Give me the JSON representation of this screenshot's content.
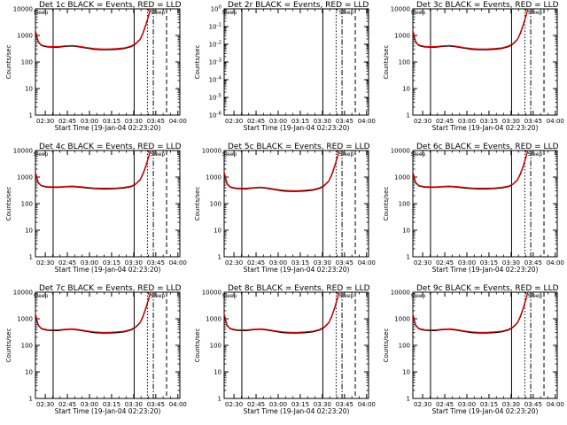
{
  "chart_data": [
    {
      "type": "line",
      "title": "Det 1c BLACK = Events, RED = LLD",
      "xlabel": "Start Time (19-Jan-04 02:23:20)",
      "ylabel": "Counts/sec",
      "x_ticks": [
        "02:30",
        "02:45",
        "03:00",
        "03:15",
        "03:30",
        "03:45",
        "04:00"
      ],
      "y_ticks": [
        "1",
        "10",
        "100",
        "1000",
        "10000"
      ],
      "y_scale": "log",
      "ylim": [
        1,
        10000
      ],
      "x_minutes": [
        0,
        2,
        4,
        6,
        8,
        10,
        15,
        20,
        25,
        30,
        35,
        40,
        45,
        50,
        55,
        60,
        65,
        68,
        71,
        73,
        75,
        77,
        78
      ],
      "series": [
        {
          "color": "#000000",
          "values": [
            1500,
            560,
            420,
            390,
            370,
            365,
            360,
            385,
            400,
            370,
            330,
            300,
            290,
            290,
            300,
            320,
            380,
            480,
            700,
            1200,
            2500,
            6000,
            10000
          ]
        },
        {
          "color": "#ff0000",
          "values": [
            1600,
            590,
            440,
            410,
            390,
            385,
            380,
            405,
            420,
            390,
            350,
            320,
            310,
            310,
            320,
            340,
            400,
            500,
            730,
            1300,
            2700,
            6500,
            11000
          ]
        }
      ],
      "vlines_minutes": [
        {
          "at": 12,
          "style": "solid"
        },
        {
          "at": 67,
          "style": "solid"
        },
        {
          "at": 76,
          "style": "dotted"
        },
        {
          "at": 80,
          "style": "dashdot"
        },
        {
          "at": 89,
          "style": "dashed"
        }
      ],
      "marker_text": "Sleep"
    },
    {
      "type": "line",
      "title": "Det 2r BLACK = Events, RED = LLD",
      "xlabel": "Start Time (19-Jan-04 02:23:20)",
      "ylabel": "Counts/sec",
      "x_ticks": [
        "02:30",
        "02:45",
        "03:00",
        "03:15",
        "03:30",
        "03:45",
        "04:00"
      ],
      "y_ticks": [
        "10^0",
        "10^-1",
        "10^-2",
        "10^-3",
        "10^-4",
        "10^-5",
        "10^-6"
      ],
      "y_scale": "log",
      "ylim": [
        1e-06,
        1
      ],
      "x_minutes": [],
      "series": [],
      "vlines_minutes": [
        {
          "at": 12,
          "style": "solid"
        },
        {
          "at": 67,
          "style": "solid"
        },
        {
          "at": 76,
          "style": "dotted"
        },
        {
          "at": 80,
          "style": "dashdot"
        },
        {
          "at": 89,
          "style": "dashed"
        }
      ],
      "marker_text": "Sleep"
    },
    {
      "type": "line",
      "title": "Det 3c BLACK = Events, RED = LLD",
      "xlabel": "Start Time (19-Jan-04 02:23:20)",
      "ylabel": "Counts/sec",
      "x_ticks": [
        "02:30",
        "02:45",
        "03:00",
        "03:15",
        "03:30",
        "03:45",
        "04:00"
      ],
      "y_ticks": [
        "1",
        "10",
        "100",
        "1000",
        "10000"
      ],
      "y_scale": "log",
      "ylim": [
        1,
        10000
      ],
      "x_minutes": [
        0,
        2,
        4,
        6,
        8,
        10,
        15,
        20,
        25,
        30,
        35,
        40,
        45,
        50,
        55,
        60,
        65,
        68,
        71,
        73,
        75,
        77,
        78
      ],
      "series": [
        {
          "color": "#000000",
          "values": [
            1500,
            560,
            420,
            390,
            370,
            365,
            360,
            385,
            400,
            370,
            330,
            300,
            290,
            290,
            300,
            320,
            380,
            480,
            700,
            1200,
            2500,
            6000,
            10000
          ]
        },
        {
          "color": "#ff0000",
          "values": [
            1600,
            590,
            440,
            410,
            390,
            385,
            380,
            405,
            420,
            390,
            350,
            320,
            310,
            310,
            320,
            340,
            400,
            500,
            730,
            1300,
            2700,
            6500,
            11000
          ]
        }
      ],
      "vlines_minutes": [
        {
          "at": 12,
          "style": "solid"
        },
        {
          "at": 67,
          "style": "solid"
        },
        {
          "at": 76,
          "style": "dotted"
        },
        {
          "at": 80,
          "style": "dashdot"
        },
        {
          "at": 89,
          "style": "dashed"
        }
      ],
      "marker_text": "Sleep"
    },
    {
      "type": "line",
      "title": "Det 4c BLACK = Events, RED = LLD",
      "xlabel": "Start Time (19-Jan-04 02:23:20)",
      "ylabel": "Counts/sec",
      "x_ticks": [
        "02:30",
        "02:45",
        "03:00",
        "03:15",
        "03:30",
        "03:45",
        "04:00"
      ],
      "y_ticks": [
        "1",
        "10",
        "100",
        "1000",
        "10000"
      ],
      "y_scale": "log",
      "ylim": [
        1,
        10000
      ],
      "x_minutes": [
        0,
        2,
        4,
        6,
        8,
        10,
        15,
        20,
        25,
        30,
        35,
        40,
        45,
        50,
        55,
        60,
        65,
        68,
        71,
        73,
        75,
        77,
        78
      ],
      "series": [
        {
          "color": "#000000",
          "values": [
            1500,
            600,
            470,
            440,
            420,
            415,
            410,
            430,
            440,
            420,
            390,
            370,
            360,
            360,
            370,
            390,
            440,
            540,
            780,
            1300,
            2600,
            6200,
            10000
          ]
        },
        {
          "color": "#ff0000",
          "values": [
            1600,
            630,
            490,
            460,
            440,
            435,
            430,
            450,
            460,
            440,
            410,
            390,
            380,
            380,
            390,
            410,
            460,
            560,
            810,
            1400,
            2800,
            6700,
            11000
          ]
        }
      ],
      "vlines_minutes": [
        {
          "at": 12,
          "style": "solid"
        },
        {
          "at": 67,
          "style": "solid"
        },
        {
          "at": 76,
          "style": "dotted"
        },
        {
          "at": 80,
          "style": "dashdot"
        },
        {
          "at": 89,
          "style": "dashed"
        }
      ],
      "marker_text": "Sleep"
    },
    {
      "type": "line",
      "title": "Det 5c BLACK = Events, RED = LLD",
      "xlabel": "Start Time (19-Jan-04 02:23:20)",
      "ylabel": "Counts/sec",
      "x_ticks": [
        "02:30",
        "02:45",
        "03:00",
        "03:15",
        "03:30",
        "03:45",
        "04:00"
      ],
      "y_ticks": [
        "1",
        "10",
        "100",
        "1000",
        "10000"
      ],
      "y_scale": "log",
      "ylim": [
        1,
        10000
      ],
      "x_minutes": [
        0,
        2,
        4,
        6,
        8,
        10,
        15,
        20,
        25,
        30,
        35,
        40,
        45,
        50,
        55,
        60,
        65,
        68,
        71,
        73,
        75,
        77,
        78
      ],
      "series": [
        {
          "color": "#000000",
          "values": [
            1500,
            560,
            420,
            390,
            370,
            365,
            360,
            385,
            400,
            370,
            330,
            300,
            290,
            290,
            300,
            320,
            380,
            480,
            700,
            1200,
            2500,
            6000,
            10000
          ]
        },
        {
          "color": "#ff0000",
          "values": [
            1600,
            590,
            440,
            410,
            390,
            385,
            380,
            405,
            420,
            390,
            350,
            320,
            310,
            310,
            320,
            340,
            400,
            500,
            730,
            1300,
            2700,
            6500,
            11000
          ]
        }
      ],
      "vlines_minutes": [
        {
          "at": 12,
          "style": "solid"
        },
        {
          "at": 67,
          "style": "solid"
        },
        {
          "at": 76,
          "style": "dotted"
        },
        {
          "at": 80,
          "style": "dashdot"
        },
        {
          "at": 89,
          "style": "dashed"
        }
      ],
      "marker_text": "Sleep"
    },
    {
      "type": "line",
      "title": "Det 6c BLACK = Events, RED = LLD",
      "xlabel": "Start Time (19-Jan-04 02:23:20)",
      "ylabel": "Counts/sec",
      "x_ticks": [
        "02:30",
        "02:45",
        "03:00",
        "03:15",
        "03:30",
        "03:45",
        "04:00"
      ],
      "y_ticks": [
        "1",
        "10",
        "100",
        "1000",
        "10000"
      ],
      "y_scale": "log",
      "ylim": [
        1,
        10000
      ],
      "x_minutes": [
        0,
        2,
        4,
        6,
        8,
        10,
        15,
        20,
        25,
        30,
        35,
        40,
        45,
        50,
        55,
        60,
        65,
        68,
        71,
        73,
        75,
        77,
        78
      ],
      "series": [
        {
          "color": "#000000",
          "values": [
            1500,
            600,
            470,
            440,
            420,
            415,
            410,
            430,
            440,
            420,
            390,
            370,
            360,
            360,
            370,
            390,
            440,
            540,
            780,
            1300,
            2600,
            6200,
            10000
          ]
        },
        {
          "color": "#ff0000",
          "values": [
            1600,
            630,
            490,
            460,
            440,
            435,
            430,
            450,
            460,
            440,
            410,
            390,
            380,
            380,
            390,
            410,
            460,
            560,
            810,
            1400,
            2800,
            6700,
            11000
          ]
        }
      ],
      "vlines_minutes": [
        {
          "at": 12,
          "style": "solid"
        },
        {
          "at": 67,
          "style": "solid"
        },
        {
          "at": 76,
          "style": "dotted"
        },
        {
          "at": 80,
          "style": "dashdot"
        },
        {
          "at": 89,
          "style": "dashed"
        }
      ],
      "marker_text": "Sleep"
    },
    {
      "type": "line",
      "title": "Det 7c BLACK = Events, RED = LLD",
      "xlabel": "Start Time (19-Jan-04 02:23:20)",
      "ylabel": "Counts/sec",
      "x_ticks": [
        "02:30",
        "02:45",
        "03:00",
        "03:15",
        "03:30",
        "03:45",
        "04:00"
      ],
      "y_ticks": [
        "1",
        "10",
        "100",
        "1000",
        "10000"
      ],
      "y_scale": "log",
      "ylim": [
        1,
        10000
      ],
      "x_minutes": [
        0,
        2,
        4,
        6,
        8,
        10,
        15,
        20,
        25,
        30,
        35,
        40,
        45,
        50,
        55,
        60,
        65,
        68,
        71,
        73,
        75,
        77,
        78
      ],
      "series": [
        {
          "color": "#000000",
          "values": [
            1500,
            560,
            420,
            390,
            370,
            365,
            360,
            385,
            400,
            370,
            330,
            300,
            290,
            290,
            300,
            320,
            380,
            480,
            700,
            1200,
            2500,
            6000,
            10000
          ]
        },
        {
          "color": "#ff0000",
          "values": [
            1600,
            590,
            440,
            410,
            390,
            385,
            380,
            405,
            420,
            390,
            350,
            320,
            310,
            310,
            320,
            340,
            400,
            500,
            730,
            1300,
            2700,
            6500,
            11000
          ]
        }
      ],
      "vlines_minutes": [
        {
          "at": 12,
          "style": "solid"
        },
        {
          "at": 67,
          "style": "solid"
        },
        {
          "at": 76,
          "style": "dotted"
        },
        {
          "at": 80,
          "style": "dashdot"
        },
        {
          "at": 89,
          "style": "dashed"
        }
      ],
      "marker_text": "Sleep"
    },
    {
      "type": "line",
      "title": "Det 8c BLACK = Events, RED = LLD",
      "xlabel": "Start Time (19-Jan-04 02:23:20)",
      "ylabel": "Counts/sec",
      "x_ticks": [
        "02:30",
        "02:45",
        "03:00",
        "03:15",
        "03:30",
        "03:45",
        "04:00"
      ],
      "y_ticks": [
        "1",
        "10",
        "100",
        "1000",
        "10000"
      ],
      "y_scale": "log",
      "ylim": [
        1,
        10000
      ],
      "x_minutes": [
        0,
        2,
        4,
        6,
        8,
        10,
        15,
        20,
        25,
        30,
        35,
        40,
        45,
        50,
        55,
        60,
        65,
        68,
        71,
        73,
        75,
        77,
        78
      ],
      "series": [
        {
          "color": "#000000",
          "values": [
            1500,
            560,
            420,
            390,
            370,
            365,
            360,
            385,
            400,
            370,
            330,
            300,
            290,
            290,
            300,
            320,
            380,
            480,
            700,
            1200,
            2500,
            6000,
            10000
          ]
        },
        {
          "color": "#ff0000",
          "values": [
            1600,
            590,
            440,
            410,
            390,
            385,
            380,
            405,
            420,
            390,
            350,
            320,
            310,
            310,
            320,
            340,
            400,
            500,
            730,
            1300,
            2700,
            6500,
            11000
          ]
        }
      ],
      "vlines_minutes": [
        {
          "at": 12,
          "style": "solid"
        },
        {
          "at": 67,
          "style": "solid"
        },
        {
          "at": 76,
          "style": "dotted"
        },
        {
          "at": 80,
          "style": "dashdot"
        },
        {
          "at": 89,
          "style": "dashed"
        }
      ],
      "marker_text": "Sleep"
    },
    {
      "type": "line",
      "title": "Det 9c BLACK = Events, RED = LLD",
      "xlabel": "Start Time (19-Jan-04 02:23:20)",
      "ylabel": "Counts/sec",
      "x_ticks": [
        "02:30",
        "02:45",
        "03:00",
        "03:15",
        "03:30",
        "03:45",
        "04:00"
      ],
      "y_ticks": [
        "1",
        "10",
        "100",
        "1000",
        "10000"
      ],
      "y_scale": "log",
      "ylim": [
        1,
        10000
      ],
      "x_minutes": [
        0,
        2,
        4,
        6,
        8,
        10,
        15,
        20,
        25,
        30,
        35,
        40,
        45,
        50,
        55,
        60,
        65,
        68,
        71,
        73,
        75,
        77,
        78
      ],
      "series": [
        {
          "color": "#000000",
          "values": [
            1500,
            560,
            420,
            390,
            370,
            365,
            360,
            385,
            400,
            370,
            330,
            300,
            290,
            290,
            300,
            320,
            380,
            480,
            700,
            1200,
            2500,
            6000,
            10000
          ]
        },
        {
          "color": "#ff0000",
          "values": [
            1600,
            590,
            440,
            410,
            390,
            385,
            380,
            405,
            420,
            390,
            350,
            320,
            310,
            310,
            320,
            340,
            400,
            500,
            730,
            1300,
            2700,
            6500,
            11000
          ]
        }
      ],
      "vlines_minutes": [
        {
          "at": 12,
          "style": "solid"
        },
        {
          "at": 67,
          "style": "solid"
        },
        {
          "at": 76,
          "style": "dotted"
        },
        {
          "at": 80,
          "style": "dashdot"
        },
        {
          "at": 89,
          "style": "dashed"
        }
      ],
      "marker_text": "Sleep"
    }
  ]
}
